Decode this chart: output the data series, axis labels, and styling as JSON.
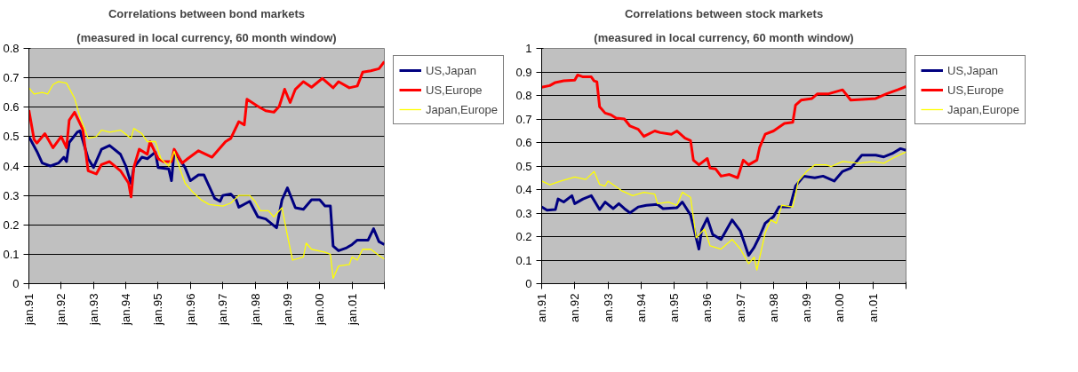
{
  "chart_data": [
    {
      "type": "line",
      "title": "Correlations between bond markets",
      "subtitle": "(measured in local currency, 60 month window)",
      "xlim": [
        "1991-01",
        "2002-01"
      ],
      "xticks": [
        {
          "value": "1991-01",
          "label": "jan.91"
        },
        {
          "value": "1992-01",
          "label": "jan.92"
        },
        {
          "value": "1993-01",
          "label": "jan.93"
        },
        {
          "value": "1994-01",
          "label": "jan.94"
        },
        {
          "value": "1995-01",
          "label": "jan.95"
        },
        {
          "value": "1996-01",
          "label": "jan.96"
        },
        {
          "value": "1997-01",
          "label": "jan.97"
        },
        {
          "value": "1998-01",
          "label": "jan.98"
        },
        {
          "value": "1999-01",
          "label": "jan.99"
        },
        {
          "value": "2000-01",
          "label": "jan.00"
        },
        {
          "value": "2001-01",
          "label": "jan.01"
        },
        {
          "value": "2002-01",
          "label": null
        }
      ],
      "ylim": [
        0,
        0.8
      ],
      "yticks": [
        0,
        0.1,
        0.2,
        0.3,
        0.4,
        0.5,
        0.6,
        0.7,
        0.8
      ],
      "grid": "y",
      "legend": "right",
      "marker": "none",
      "line_style": "solid",
      "series": [
        {
          "name": "US,Japan",
          "color": "#000080",
          "x": [
            "1991-01",
            "1991-04",
            "1991-06",
            "1991-09",
            "1991-12",
            "1992-02",
            "1992-03",
            "1992-04",
            "1992-07",
            "1992-08",
            "1992-11",
            "1993-01",
            "1993-04",
            "1993-07",
            "1993-11",
            "1994-01",
            "1994-03",
            "1994-04",
            "1994-07",
            "1994-09",
            "1994-12",
            "1995-01",
            "1995-05",
            "1995-06",
            "1995-07",
            "1995-11",
            "1996-01",
            "1996-04",
            "1996-06",
            "1996-08",
            "1996-10",
            "1996-12",
            "1997-01",
            "1997-04",
            "1997-06",
            "1997-07",
            "1997-11",
            "1998-02",
            "1998-05",
            "1998-09",
            "1998-11",
            "1999-01",
            "1999-04",
            "1999-07",
            "1999-10",
            "2000-01",
            "2000-03",
            "2000-05",
            "2000-06",
            "2000-08",
            "2000-11",
            "2001-01",
            "2001-03",
            "2001-07",
            "2001-09",
            "2001-11",
            "2002-01"
          ],
          "values": [
            0.5,
            0.45,
            0.41,
            0.4,
            0.41,
            0.43,
            0.415,
            0.48,
            0.515,
            0.52,
            0.425,
            0.395,
            0.457,
            0.47,
            0.44,
            0.4,
            0.34,
            0.395,
            0.43,
            0.425,
            0.447,
            0.395,
            0.39,
            0.35,
            0.45,
            0.395,
            0.35,
            0.37,
            0.37,
            0.33,
            0.29,
            0.28,
            0.3,
            0.305,
            0.285,
            0.26,
            0.28,
            0.227,
            0.22,
            0.19,
            0.285,
            0.326,
            0.258,
            0.253,
            0.285,
            0.285,
            0.264,
            0.264,
            0.128,
            0.112,
            0.122,
            0.133,
            0.148,
            0.148,
            0.187,
            0.143,
            0.133
          ]
        },
        {
          "name": "US,Europe",
          "color": "#ff0000",
          "x": [
            "1991-01",
            "1991-03",
            "1991-04",
            "1991-07",
            "1991-10",
            "1992-01",
            "1992-03",
            "1992-04",
            "1992-06",
            "1992-09",
            "1992-11",
            "1993-02",
            "1993-04",
            "1993-07",
            "1993-11",
            "1994-02",
            "1994-03",
            "1994-04",
            "1994-06",
            "1994-09",
            "1994-10",
            "1995-01",
            "1995-03",
            "1995-06",
            "1995-07",
            "1995-10",
            "1995-12",
            "1996-04",
            "1996-09",
            "1997-02",
            "1997-04",
            "1997-07",
            "1997-09",
            "1997-10",
            "1998-02",
            "1998-05",
            "1998-08",
            "1998-10",
            "1998-12",
            "1999-02",
            "1999-04",
            "1999-07",
            "1999-10",
            "2000-02",
            "2000-06",
            "2000-08",
            "2000-12",
            "2001-03",
            "2001-05",
            "2001-08",
            "2001-11",
            "2002-01"
          ],
          "values": [
            0.59,
            0.49,
            0.478,
            0.51,
            0.462,
            0.5,
            0.462,
            0.556,
            0.583,
            0.525,
            0.384,
            0.373,
            0.405,
            0.415,
            0.384,
            0.342,
            0.295,
            0.395,
            0.457,
            0.44,
            0.483,
            0.425,
            0.415,
            0.415,
            0.457,
            0.41,
            0.425,
            0.452,
            0.43,
            0.483,
            0.494,
            0.551,
            0.54,
            0.627,
            0.603,
            0.588,
            0.583,
            0.603,
            0.661,
            0.616,
            0.661,
            0.687,
            0.668,
            0.698,
            0.666,
            0.687,
            0.666,
            0.672,
            0.719,
            0.724,
            0.731,
            0.755
          ]
        },
        {
          "name": "Japan,Europe",
          "color": "#ffff00",
          "x": [
            "1991-01",
            "1991-03",
            "1991-06",
            "1991-08",
            "1991-10",
            "1991-12",
            "1992-03",
            "1992-06",
            "1992-08",
            "1992-11",
            "1993-02",
            "1993-04",
            "1993-07",
            "1993-11",
            "1994-03",
            "1994-04",
            "1994-07",
            "1994-09",
            "1994-12",
            "1995-02",
            "1995-05",
            "1995-07",
            "1995-09",
            "1995-11",
            "1996-02",
            "1996-05",
            "1996-08",
            "1997-01",
            "1997-04",
            "1997-07",
            "1997-11",
            "1998-01",
            "1998-03",
            "1998-06",
            "1998-08",
            "1998-11",
            "1999-01",
            "1999-03",
            "1999-07",
            "1999-08",
            "1999-10",
            "2000-03",
            "2000-05",
            "2000-06",
            "2000-08",
            "2000-12",
            "2001-01",
            "2001-03",
            "2001-05",
            "2001-08",
            "2001-11",
            "2002-01"
          ],
          "values": [
            0.666,
            0.645,
            0.65,
            0.645,
            0.677,
            0.687,
            0.682,
            0.63,
            0.567,
            0.494,
            0.5,
            0.522,
            0.515,
            0.522,
            0.494,
            0.528,
            0.51,
            0.483,
            0.483,
            0.425,
            0.4,
            0.45,
            0.394,
            0.342,
            0.31,
            0.285,
            0.269,
            0.264,
            0.274,
            0.3,
            0.3,
            0.28,
            0.248,
            0.248,
            0.227,
            0.258,
            0.164,
            0.08,
            0.091,
            0.138,
            0.117,
            0.107,
            0.1,
            0.018,
            0.06,
            0.065,
            0.091,
            0.08,
            0.117,
            0.117,
            0.096,
            0.084
          ]
        }
      ]
    },
    {
      "type": "line",
      "title": "Correlations between stock markets",
      "subtitle": "(measured in local currency, 60 month window)",
      "xlim": [
        "1991-01",
        "2002-01"
      ],
      "xticks": [
        {
          "value": "1991-01",
          "label": "an.91"
        },
        {
          "value": "1992-01",
          "label": "an.92"
        },
        {
          "value": "1993-01",
          "label": "an.93"
        },
        {
          "value": "1994-01",
          "label": "an.94"
        },
        {
          "value": "1995-01",
          "label": "an.95"
        },
        {
          "value": "1996-01",
          "label": "an.96"
        },
        {
          "value": "1997-01",
          "label": "an.97"
        },
        {
          "value": "1998-01",
          "label": "an.98"
        },
        {
          "value": "1999-01",
          "label": "an.99"
        },
        {
          "value": "2000-01",
          "label": "an.00"
        },
        {
          "value": "2001-01",
          "label": "an.01"
        },
        {
          "value": "2002-01",
          "label": null
        }
      ],
      "ylim": [
        0,
        1
      ],
      "yticks": [
        0,
        0.1,
        0.2,
        0.3,
        0.4,
        0.5,
        0.6,
        0.7,
        0.8,
        0.9,
        1
      ],
      "grid": "y",
      "legend": "right",
      "marker": "none",
      "line_style": "solid",
      "series": [
        {
          "name": "US,Japan",
          "color": "#000080",
          "x": [
            "1991-01",
            "1991-03",
            "1991-06",
            "1991-07",
            "1991-09",
            "1991-12",
            "1992-01",
            "1992-04",
            "1992-07",
            "1992-10",
            "1992-12",
            "1993-03",
            "1993-05",
            "1993-07",
            "1993-09",
            "1993-12",
            "1994-03",
            "1994-07",
            "1994-09",
            "1995-02",
            "1995-04",
            "1995-07",
            "1995-10",
            "1995-11",
            "1996-01",
            "1996-03",
            "1996-06",
            "1996-10",
            "1997-01",
            "1997-04",
            "1997-06",
            "1997-08",
            "1997-10",
            "1998-01",
            "1998-03",
            "1998-07",
            "1998-09",
            "1998-12",
            "1999-04",
            "1999-07",
            "1999-11",
            "2000-02",
            "2000-05",
            "2000-09",
            "2001-02",
            "2001-05",
            "2001-08",
            "2001-11",
            "2002-01"
          ],
          "values": [
            0.326,
            0.312,
            0.315,
            0.36,
            0.347,
            0.374,
            0.34,
            0.36,
            0.374,
            0.315,
            0.347,
            0.319,
            0.34,
            0.319,
            0.301,
            0.326,
            0.333,
            0.337,
            0.319,
            0.323,
            0.347,
            0.292,
            0.147,
            0.23,
            0.278,
            0.209,
            0.188,
            0.271,
            0.223,
            0.12,
            0.154,
            0.202,
            0.257,
            0.285,
            0.326,
            0.326,
            0.415,
            0.457,
            0.45,
            0.457,
            0.436,
            0.477,
            0.491,
            0.546,
            0.546,
            0.539,
            0.553,
            0.574,
            0.567
          ]
        },
        {
          "name": "US,Europe",
          "color": "#ff0000",
          "x": [
            "1991-01",
            "1991-04",
            "1991-06",
            "1991-09",
            "1992-01",
            "1992-02",
            "1992-04",
            "1992-07",
            "1992-08",
            "1992-09",
            "1992-10",
            "1992-12",
            "1993-02",
            "1993-04",
            "1993-07",
            "1993-09",
            "1993-12",
            "1994-02",
            "1994-06",
            "1994-08",
            "1994-12",
            "1995-02",
            "1995-05",
            "1995-07",
            "1995-08",
            "1995-10",
            "1996-01",
            "1996-02",
            "1996-04",
            "1996-06",
            "1996-09",
            "1996-12",
            "1997-02",
            "1997-04",
            "1997-07",
            "1997-08",
            "1997-10",
            "1998-01",
            "1998-05",
            "1998-08",
            "1998-09",
            "1998-11",
            "1999-03",
            "1999-05",
            "1999-09",
            "2000-02",
            "2000-05",
            "2000-09",
            "2001-02",
            "2001-06",
            "2001-10",
            "2002-01"
          ],
          "values": [
            0.835,
            0.842,
            0.855,
            0.862,
            0.865,
            0.887,
            0.879,
            0.879,
            0.862,
            0.858,
            0.752,
            0.725,
            0.718,
            0.704,
            0.7,
            0.67,
            0.656,
            0.626,
            0.649,
            0.642,
            0.635,
            0.649,
            0.618,
            0.608,
            0.525,
            0.505,
            0.532,
            0.491,
            0.488,
            0.457,
            0.464,
            0.45,
            0.525,
            0.505,
            0.525,
            0.58,
            0.635,
            0.649,
            0.681,
            0.686,
            0.759,
            0.78,
            0.787,
            0.807,
            0.807,
            0.824,
            0.78,
            0.783,
            0.787,
            0.807,
            0.824,
            0.838
          ]
        },
        {
          "name": "Japan,Europe",
          "color": "#ffff00",
          "x": [
            "1991-01",
            "1991-04",
            "1991-08",
            "1992-01",
            "1992-05",
            "1992-08",
            "1992-10",
            "1992-12",
            "1993-01",
            "1993-06",
            "1993-10",
            "1994-02",
            "1994-06",
            "1994-07",
            "1994-11",
            "1995-02",
            "1995-04",
            "1995-07",
            "1995-09",
            "1995-12",
            "1996-02",
            "1996-06",
            "1996-10",
            "1997-01",
            "1997-04",
            "1997-06",
            "1997-07",
            "1997-10",
            "1997-12",
            "1998-02",
            "1998-04",
            "1998-08",
            "1998-10",
            "1999-01",
            "1999-04",
            "1999-08",
            "1999-10",
            "2000-02",
            "2000-08",
            "2001-01",
            "2001-05",
            "2001-08",
            "2002-01"
          ],
          "values": [
            0.436,
            0.42,
            0.436,
            0.453,
            0.443,
            0.477,
            0.422,
            0.415,
            0.436,
            0.395,
            0.374,
            0.388,
            0.381,
            0.34,
            0.347,
            0.333,
            0.388,
            0.367,
            0.195,
            0.232,
            0.161,
            0.147,
            0.188,
            0.147,
            0.085,
            0.113,
            0.058,
            0.216,
            0.271,
            0.257,
            0.333,
            0.326,
            0.436,
            0.477,
            0.505,
            0.505,
            0.498,
            0.519,
            0.512,
            0.519,
            0.512,
            0.532,
            0.56
          ]
        }
      ]
    }
  ]
}
